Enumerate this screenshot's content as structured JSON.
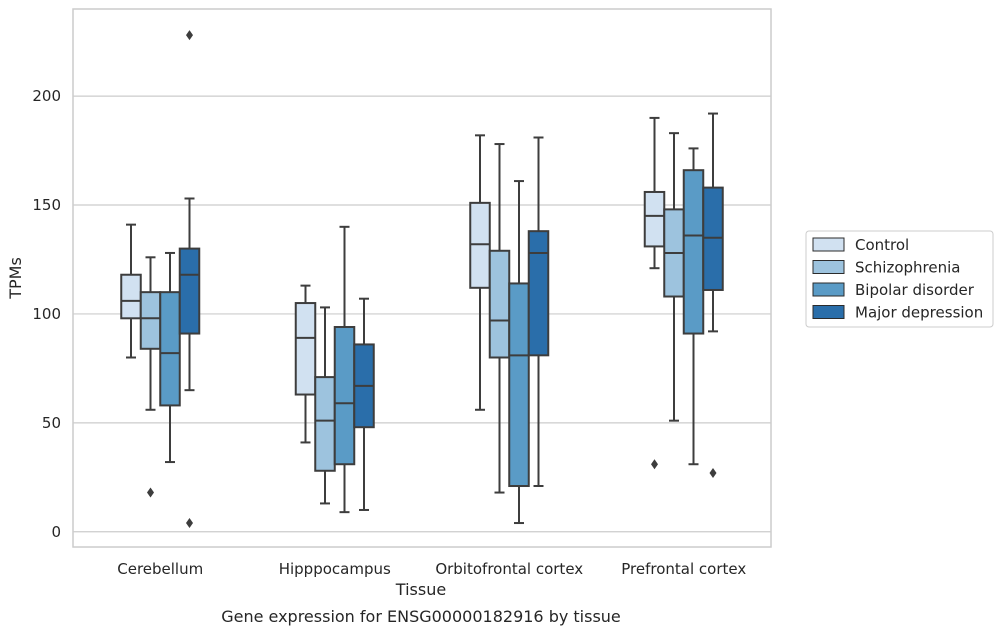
{
  "chart_data": {
    "type": "box",
    "xlabel": "Tissue",
    "ylabel": "TPMs",
    "caption": "Gene expression for ENSG00000182916 by tissue",
    "ylim": [
      -7,
      240
    ],
    "yticks": [
      0,
      50,
      100,
      150,
      200
    ],
    "grid": true,
    "legend_position": "right",
    "categories": [
      "Cerebellum",
      "Hipppocampus",
      "Orbitofrontal cortex",
      "Prefrontal cortex"
    ],
    "series": [
      {
        "name": "Control",
        "color": "#d1e1f1",
        "boxes": [
          {
            "whislo": 80,
            "q1": 98,
            "med": 106,
            "q3": 118,
            "whishi": 141,
            "fliers": []
          },
          {
            "whislo": 41,
            "q1": 63,
            "med": 89,
            "q3": 105,
            "whishi": 113,
            "fliers": []
          },
          {
            "whislo": 56,
            "q1": 112,
            "med": 132,
            "q3": 151,
            "whishi": 182,
            "fliers": []
          },
          {
            "whislo": 121,
            "q1": 131,
            "med": 145,
            "q3": 156,
            "whishi": 190,
            "fliers": [
              31
            ]
          }
        ]
      },
      {
        "name": "Schizophrenia",
        "color": "#9dc3de",
        "boxes": [
          {
            "whislo": 56,
            "q1": 84,
            "med": 98,
            "q3": 110,
            "whishi": 126,
            "fliers": [
              18
            ]
          },
          {
            "whislo": 13,
            "q1": 28,
            "med": 51,
            "q3": 71,
            "whishi": 103,
            "fliers": []
          },
          {
            "whislo": 18,
            "q1": 80,
            "med": 97,
            "q3": 129,
            "whishi": 178,
            "fliers": []
          },
          {
            "whislo": 51,
            "q1": 108,
            "med": 128,
            "q3": 148,
            "whishi": 183,
            "fliers": []
          }
        ]
      },
      {
        "name": "Bipolar disorder",
        "color": "#5a9bc6",
        "boxes": [
          {
            "whislo": 32,
            "q1": 58,
            "med": 82,
            "q3": 110,
            "whishi": 128,
            "fliers": []
          },
          {
            "whislo": 9,
            "q1": 31,
            "med": 59,
            "q3": 94,
            "whishi": 140,
            "fliers": []
          },
          {
            "whislo": 4,
            "q1": 21,
            "med": 81,
            "q3": 114,
            "whishi": 161,
            "fliers": []
          },
          {
            "whislo": 31,
            "q1": 91,
            "med": 136,
            "q3": 166,
            "whishi": 176,
            "fliers": []
          }
        ]
      },
      {
        "name": "Major depression",
        "color": "#2a6eaa",
        "boxes": [
          {
            "whislo": 65,
            "q1": 91,
            "med": 118,
            "q3": 130,
            "whishi": 153,
            "fliers": [
              228,
              4
            ]
          },
          {
            "whislo": 10,
            "q1": 48,
            "med": 67,
            "q3": 86,
            "whishi": 107,
            "fliers": []
          },
          {
            "whislo": 21,
            "q1": 81,
            "med": 128,
            "q3": 138,
            "whishi": 181,
            "fliers": []
          },
          {
            "whislo": 92,
            "q1": 111,
            "med": 135,
            "q3": 158,
            "whishi": 192,
            "fliers": [
              27
            ]
          }
        ]
      }
    ]
  }
}
